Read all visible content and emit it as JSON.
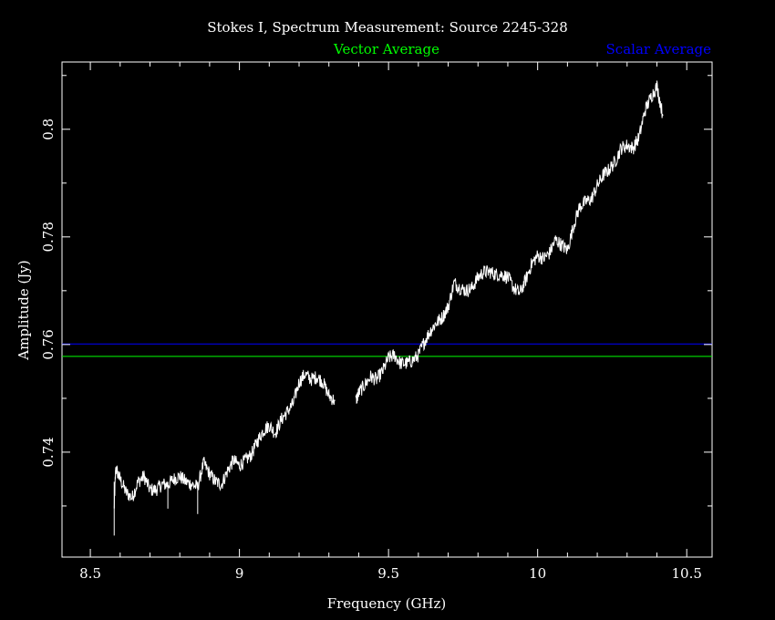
{
  "chart_data": {
    "type": "line",
    "title": "Stokes I, Spectrum Measurement: Source 2245-328",
    "xlabel": "Frequency (GHz)",
    "ylabel": "Amplitude (Jy)",
    "xlim": [
      8.405,
      10.585
    ],
    "ylim": [
      0.7205,
      0.8125
    ],
    "x_ticks": [
      "8.5",
      "9",
      "9.5",
      "10",
      "10.5"
    ],
    "x_tick_values": [
      8.5,
      9.0,
      9.5,
      10.0,
      10.5
    ],
    "y_ticks": [
      "0.74",
      "0.76",
      "0.78",
      "0.8"
    ],
    "y_tick_values": [
      0.74,
      0.76,
      0.78,
      0.8
    ],
    "grid": false,
    "legend": [
      {
        "name": "Vector Average",
        "color": "#00ff00"
      },
      {
        "name": "Scalar Average",
        "color": "#0000ff"
      }
    ],
    "reference_lines": [
      {
        "name": "Vector Average",
        "y": 0.7578,
        "color": "#00ff00"
      },
      {
        "name": "Scalar Average",
        "y": 0.7601,
        "color": "#0000ff"
      }
    ],
    "series": [
      {
        "color": "#ffffff",
        "segments": [
          {
            "x": [
              8.58,
              8.585,
              8.6,
              8.62,
              8.64,
              8.66,
              8.68,
              8.7,
              8.72,
              8.74,
              8.76,
              8.78,
              8.8,
              8.82,
              8.84,
              8.86,
              8.88,
              8.9,
              8.92,
              8.94,
              8.96,
              8.98,
              9.0,
              9.02,
              9.04,
              9.06,
              9.08,
              9.1,
              9.12,
              9.14,
              9.16,
              9.18,
              9.2,
              9.22,
              9.24,
              9.26,
              9.28,
              9.3,
              9.32
            ],
            "y": [
              0.7295,
              0.737,
              0.735,
              0.7325,
              0.7315,
              0.7345,
              0.7355,
              0.733,
              0.733,
              0.734,
              0.734,
              0.735,
              0.7355,
              0.7345,
              0.734,
              0.7335,
              0.738,
              0.736,
              0.7345,
              0.734,
              0.7365,
              0.7385,
              0.7375,
              0.7385,
              0.7395,
              0.742,
              0.744,
              0.745,
              0.7435,
              0.746,
              0.7475,
              0.749,
              0.753,
              0.7545,
              0.7535,
              0.754,
              0.753,
              0.7505,
              0.7495
            ]
          },
          {
            "x": [
              9.39,
              9.4,
              9.42,
              9.44,
              9.46,
              9.48,
              9.5,
              9.52,
              9.54,
              9.56,
              9.58,
              9.6,
              9.62,
              9.64,
              9.66,
              9.68,
              9.7,
              9.72,
              9.74,
              9.76,
              9.78,
              9.8,
              9.82,
              9.84,
              9.86,
              9.88,
              9.9,
              9.92,
              9.94,
              9.96,
              9.98,
              10.0,
              10.02,
              10.04,
              10.06,
              10.08,
              10.1,
              10.12,
              10.14,
              10.16,
              10.18,
              10.2,
              10.22,
              10.24,
              10.26,
              10.28,
              10.3,
              10.32,
              10.34,
              10.36,
              10.38,
              10.4,
              10.42
            ],
            "y": [
              0.7495,
              0.751,
              0.7525,
              0.754,
              0.7535,
              0.755,
              0.7575,
              0.758,
              0.7565,
              0.7565,
              0.757,
              0.758,
              0.7605,
              0.7625,
              0.764,
              0.765,
              0.767,
              0.7715,
              0.7705,
              0.77,
              0.7705,
              0.7725,
              0.7735,
              0.7735,
              0.773,
              0.773,
              0.7725,
              0.7705,
              0.7695,
              0.772,
              0.775,
              0.7765,
              0.776,
              0.777,
              0.7795,
              0.7785,
              0.7775,
              0.782,
              0.7855,
              0.7865,
              0.787,
              0.7895,
              0.7915,
              0.7925,
              0.794,
              0.7965,
              0.797,
              0.7965,
              0.7985,
              0.8035,
              0.806,
              0.808,
              0.8025
            ]
          }
        ]
      }
    ]
  }
}
